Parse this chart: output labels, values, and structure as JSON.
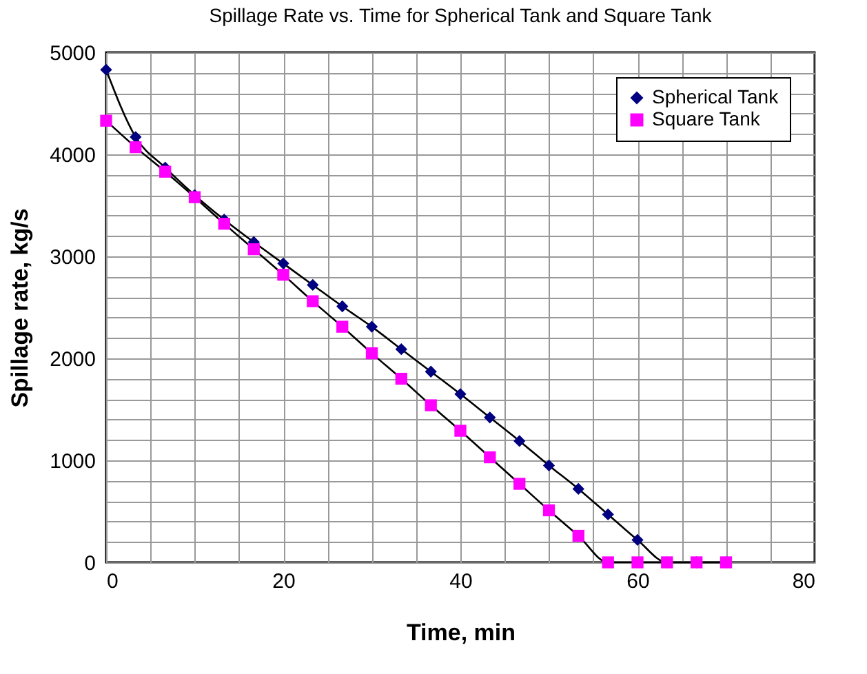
{
  "chart_data": {
    "type": "line",
    "title": "Spillage Rate vs. Time for Spherical Tank and Square Tank",
    "xlabel": "Time, min",
    "ylabel": "Spillage rate, kg/s",
    "x": [
      0,
      3.33,
      6.67,
      10,
      13.33,
      16.67,
      20,
      23.33,
      26.67,
      30,
      33.33,
      36.67,
      40,
      43.33,
      46.67,
      50,
      53.33,
      56.67,
      60,
      63.33,
      66.67,
      70
    ],
    "series": [
      {
        "name": "Spherical Tank",
        "color": "#000080",
        "marker": "diamond",
        "values": [
          4830,
          4170,
          3870,
          3600,
          3360,
          3140,
          2930,
          2720,
          2510,
          2310,
          2090,
          1870,
          1650,
          1420,
          1190,
          950,
          720,
          470,
          220,
          0,
          0,
          0
        ]
      },
      {
        "name": "Square Tank",
        "color": "#ff00ff",
        "marker": "square",
        "values": [
          4330,
          4070,
          3830,
          3580,
          3320,
          3070,
          2820,
          2560,
          2310,
          2050,
          1800,
          1540,
          1290,
          1030,
          770,
          510,
          260,
          0,
          0,
          0,
          0,
          0
        ]
      }
    ],
    "xlim": [
      0,
      80
    ],
    "xticks": [
      0,
      {
        "value": 5,
        "label": null
      },
      {
        "value": 10,
        "label": null
      },
      {
        "value": 15,
        "label": null
      },
      20,
      {
        "value": 25,
        "label": null
      },
      {
        "value": 30,
        "label": null
      },
      {
        "value": 35,
        "label": null
      },
      40,
      {
        "value": 45,
        "label": null
      },
      {
        "value": 50,
        "label": null
      },
      {
        "value": 55,
        "label": null
      },
      60,
      {
        "value": 65,
        "label": null
      },
      {
        "value": 70,
        "label": null
      },
      {
        "value": 75,
        "label": null
      },
      80
    ],
    "ylim": [
      0,
      5000
    ],
    "yticks": [
      0,
      {
        "value": 200,
        "label": null
      },
      {
        "value": 400,
        "label": null
      },
      {
        "value": 600,
        "label": null
      },
      {
        "value": 800,
        "label": null
      },
      1000,
      {
        "value": 1200,
        "label": null
      },
      {
        "value": 1400,
        "label": null
      },
      {
        "value": 1600,
        "label": null
      },
      {
        "value": 1800,
        "label": null
      },
      2000,
      {
        "value": 2200,
        "label": null
      },
      {
        "value": 2400,
        "label": null
      },
      {
        "value": 2600,
        "label": null
      },
      {
        "value": 2800,
        "label": null
      },
      3000,
      {
        "value": 3200,
        "label": null
      },
      {
        "value": 3400,
        "label": null
      },
      {
        "value": 3600,
        "label": null
      },
      {
        "value": 3800,
        "label": null
      },
      4000,
      {
        "value": 4200,
        "label": null
      },
      {
        "value": 4400,
        "label": null
      },
      {
        "value": 4600,
        "label": null
      },
      {
        "value": 4800,
        "label": null
      },
      5000
    ],
    "grid": true,
    "legend": "top right",
    "line_style": "solid"
  }
}
